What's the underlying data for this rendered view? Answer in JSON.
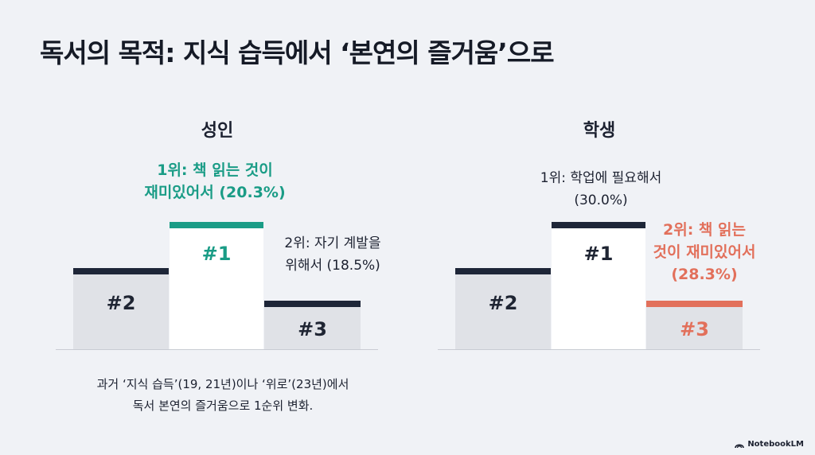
{
  "title": "독서의 목적: 지식 습득에서 ‘본연의 즐거움’으로",
  "panels": {
    "adult": {
      "heading": "성인",
      "rank1_label": [
        "1위: 책 읽는 것이",
        "재미있어서 (20.3%)"
      ],
      "rank2_label": [
        "2위: 자기 계발을",
        "위해서 (18.5%)"
      ],
      "block1": "#1",
      "block2": "#2",
      "block3": "#3"
    },
    "student": {
      "heading": "학생",
      "rank1_label": [
        "1위: 학업에 필요해서",
        "(30.0%)"
      ],
      "rank2_label": [
        "2위: 책 읽는",
        "것이 재미있어서",
        "(28.3%)"
      ],
      "block1": "#1",
      "block2": "#2",
      "block3": "#3"
    }
  },
  "note": [
    "과거 ‘지식 습득’(19, 21년)이나 ‘위로’(23년)에서",
    "독서 본연의 즐거움으로 1순위 변화."
  ],
  "brand": "NotebookLM",
  "colors": {
    "teal": "#1a9c86",
    "coral": "#e2705b",
    "navy": "#1e2638",
    "grey_block": "#e0e2e7"
  }
}
